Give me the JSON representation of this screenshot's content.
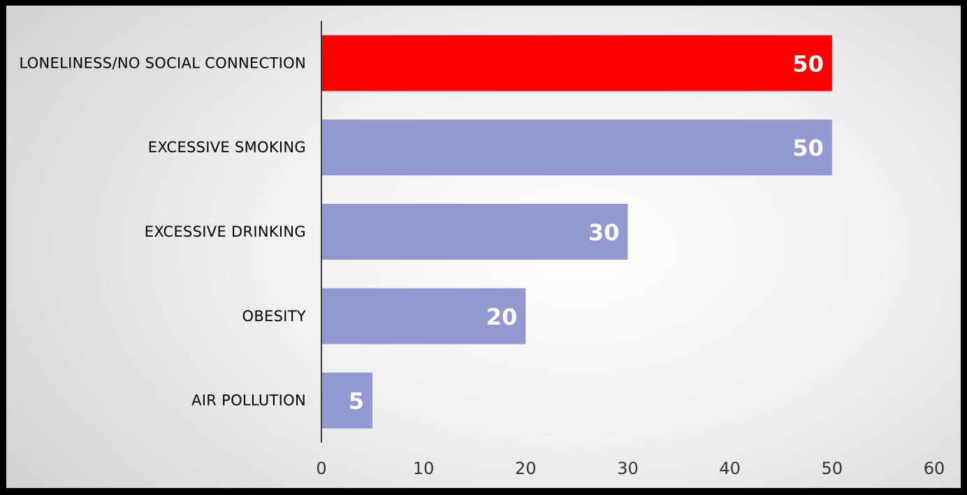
{
  "chart_data": {
    "type": "bar",
    "orientation": "horizontal",
    "categories": [
      "LONELINESS/NO SOCIAL CONNECTION",
      "EXCESSIVE SMOKING",
      "EXCESSIVE DRINKING",
      "OBESITY",
      "AIR POLLUTION"
    ],
    "values": [
      50,
      50,
      30,
      20,
      5
    ],
    "data_labels": [
      "50",
      "50",
      "30",
      "20",
      "5"
    ],
    "bar_colors": [
      "#ff0000",
      "#9399d0",
      "#9399d0",
      "#9399d0",
      "#9399d0"
    ],
    "highlight_color": "#ff0000",
    "default_color": "#9399d0",
    "title": "",
    "xlabel": "",
    "ylabel": "",
    "xlim": [
      0,
      60
    ],
    "x_ticks": [
      0,
      10,
      20,
      30,
      40,
      50,
      60
    ],
    "x_tick_labels": [
      "0",
      "10",
      "20",
      "30",
      "40",
      "50",
      "60"
    ],
    "grid": false,
    "legend": "none"
  }
}
